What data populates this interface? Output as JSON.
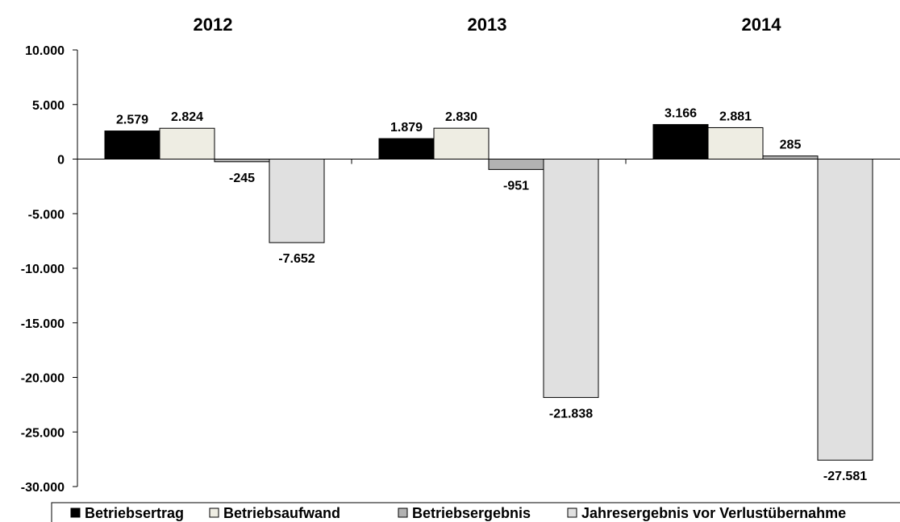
{
  "chart_data": {
    "type": "bar",
    "categories": [
      "2012",
      "2013",
      "2014"
    ],
    "series": [
      {
        "name": "Betriebsertrag",
        "color": "#000000",
        "values": [
          2579,
          1879,
          3166
        ],
        "labels": [
          "2.579",
          "1.879",
          "3.166"
        ]
      },
      {
        "name": "Betriebsaufwand",
        "color": "#eeede3",
        "values": [
          2824,
          2830,
          2881
        ],
        "labels": [
          "2.824",
          "2.830",
          "2.881"
        ]
      },
      {
        "name": "Betriebsergebnis",
        "color": "#b2b2b2",
        "values": [
          -245,
          -951,
          285
        ],
        "labels": [
          "-245",
          "-951",
          "285"
        ]
      },
      {
        "name": "Jahresergebnis vor Verlustübernahme",
        "color": "#e0e0e0",
        "values": [
          -7652,
          -21838,
          -27581
        ],
        "labels": [
          "-7.652",
          "-21.838",
          "-27.581"
        ]
      }
    ],
    "ylim": [
      -30000,
      10000
    ],
    "yticks": [
      10000,
      5000,
      0,
      -5000,
      -10000,
      -15000,
      -20000,
      -25000,
      -30000
    ],
    "ytick_labels": [
      "10.000",
      "5.000",
      "0",
      "-5.000",
      "-10.000",
      "-15.000",
      "-20.000",
      "-25.000",
      "-30.000"
    ],
    "title": "",
    "xlabel": "",
    "ylabel": "",
    "grid": false,
    "legend_position": "bottom"
  }
}
